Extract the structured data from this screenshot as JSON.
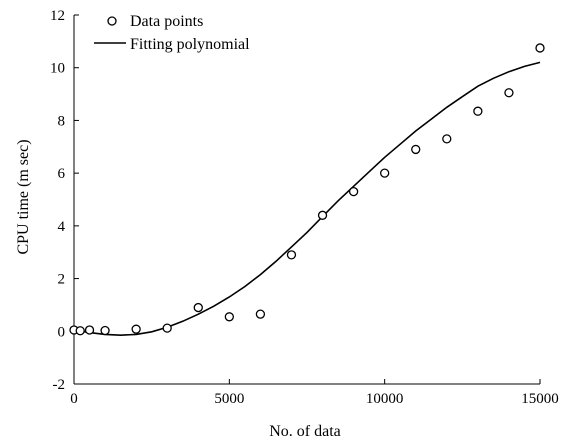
{
  "chart_data": {
    "type": "scatter",
    "xlabel": "No. of data",
    "ylabel": "CPU time (m sec)",
    "xlim": [
      0,
      15000
    ],
    "ylim": [
      -2,
      12
    ],
    "x_ticks": [
      0,
      5000,
      10000,
      15000
    ],
    "y_ticks": [
      -2,
      0,
      2,
      4,
      6,
      8,
      10,
      12
    ],
    "grid": false,
    "legend_position": "top-left",
    "series": [
      {
        "name": "Data points",
        "marker": "open-circle",
        "x": [
          0,
          200,
          500,
          1000,
          2000,
          3000,
          4000,
          5000,
          6000,
          7000,
          8000,
          9000,
          10000,
          11000,
          12000,
          13000,
          14000,
          15000
        ],
        "y": [
          0.05,
          0.02,
          0.05,
          0.03,
          0.08,
          0.12,
          0.9,
          0.55,
          0.65,
          2.9,
          4.4,
          5.3,
          6.0,
          6.9,
          7.3,
          8.35,
          9.05,
          10.75
        ]
      },
      {
        "name": "Fitting polynomial",
        "style": "solid-line",
        "x": [
          0,
          500,
          1000,
          1500,
          2000,
          2500,
          3000,
          3500,
          4000,
          4500,
          5000,
          5500,
          6000,
          6500,
          7000,
          7500,
          8000,
          8500,
          9000,
          9500,
          10000,
          10500,
          11000,
          11500,
          12000,
          12500,
          13000,
          13500,
          14000,
          14500,
          15000
        ],
        "y": [
          0.05,
          -0.05,
          -0.12,
          -0.15,
          -0.12,
          -0.02,
          0.15,
          0.38,
          0.65,
          0.95,
          1.3,
          1.7,
          2.15,
          2.65,
          3.2,
          3.75,
          4.35,
          4.95,
          5.5,
          6.05,
          6.6,
          7.1,
          7.6,
          8.05,
          8.5,
          8.9,
          9.3,
          9.6,
          9.85,
          10.05,
          10.2
        ]
      }
    ],
    "color": "#000000"
  }
}
